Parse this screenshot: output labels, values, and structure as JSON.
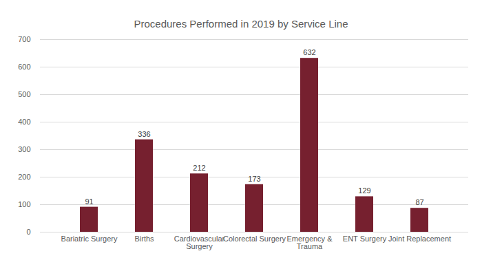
{
  "chart_data": {
    "type": "bar",
    "title": "Procedures Performed in 2019 by Service Line",
    "categories": [
      "Bariatric Surgery",
      "Births",
      "Cardiovascular Surgery",
      "Colorectal Surgery",
      "Emergency & Trauma",
      "ENT Surgery",
      "Joint Replacement"
    ],
    "values": [
      91,
      336,
      212,
      173,
      632,
      129,
      87
    ],
    "color": "#76202f",
    "ylim": [
      0,
      700
    ],
    "yticks": [
      0,
      100,
      200,
      300,
      400,
      500,
      600,
      700
    ],
    "grid": true,
    "data_labels": true
  }
}
